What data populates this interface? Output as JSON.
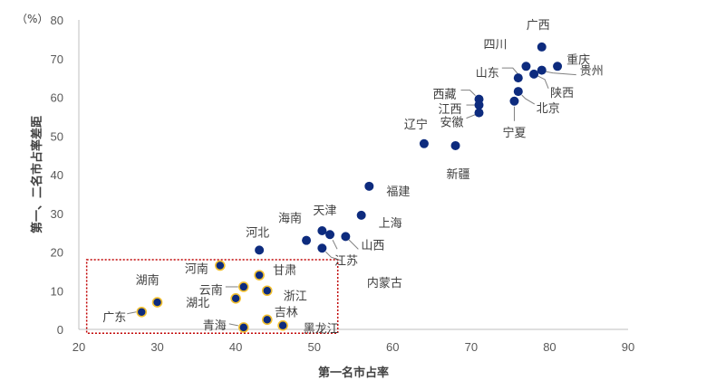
{
  "chart_data": {
    "type": "scatter",
    "unit_label": "（%）",
    "xlabel": "第一名市占率",
    "ylabel": "第一、二名市占率差距",
    "xlim": [
      20,
      90
    ],
    "ylim": [
      0,
      80
    ],
    "xticks": [
      "20",
      "30",
      "40",
      "50",
      "60",
      "70",
      "80",
      "90"
    ],
    "yticks": [
      "0",
      "10",
      "20",
      "30",
      "40",
      "50",
      "60",
      "70",
      "80"
    ],
    "grid": false,
    "points": [
      {
        "name": "广西",
        "x": 79,
        "y": 73,
        "highlight": false
      },
      {
        "name": "重庆",
        "x": 81,
        "y": 68,
        "highlight": false
      },
      {
        "name": "四川",
        "x": 77,
        "y": 68,
        "highlight": false
      },
      {
        "name": "山东",
        "x": 76,
        "y": 65,
        "highlight": false
      },
      {
        "name": "贵州",
        "x": 79,
        "y": 67,
        "highlight": false
      },
      {
        "name": "陕西",
        "x": 78,
        "y": 66,
        "highlight": false
      },
      {
        "name": "北京",
        "x": 76,
        "y": 61.5,
        "highlight": false
      },
      {
        "name": "宁夏",
        "x": 75.5,
        "y": 59,
        "highlight": false
      },
      {
        "name": "西藏",
        "x": 71,
        "y": 59.5,
        "highlight": false
      },
      {
        "name": "江西",
        "x": 71,
        "y": 58,
        "highlight": false
      },
      {
        "name": "安徽",
        "x": 71,
        "y": 56,
        "highlight": false
      },
      {
        "name": "辽宁",
        "x": 64,
        "y": 48,
        "highlight": false
      },
      {
        "name": "新疆",
        "x": 68,
        "y": 47.5,
        "highlight": false
      },
      {
        "name": "福建",
        "x": 57,
        "y": 37,
        "highlight": false
      },
      {
        "name": "上海",
        "x": 56,
        "y": 29.5,
        "highlight": false
      },
      {
        "name": "天津",
        "x": 51,
        "y": 25.5,
        "highlight": false
      },
      {
        "name": "海南",
        "x": 49,
        "y": 23,
        "highlight": false
      },
      {
        "name": "山西",
        "x": 54,
        "y": 24,
        "highlight": false
      },
      {
        "name": "江苏",
        "x": 52,
        "y": 24.5,
        "highlight": false
      },
      {
        "name": "内蒙古",
        "x": 51,
        "y": 21,
        "highlight": false
      },
      {
        "name": "河北",
        "x": 43,
        "y": 20.5,
        "highlight": false
      },
      {
        "name": "河南",
        "x": 38,
        "y": 16.5,
        "highlight": true
      },
      {
        "name": "甘肃",
        "x": 43,
        "y": 14,
        "highlight": true
      },
      {
        "name": "云南",
        "x": 41,
        "y": 11,
        "highlight": true
      },
      {
        "name": "浙江",
        "x": 44,
        "y": 10,
        "highlight": true
      },
      {
        "name": "湖北",
        "x": 40,
        "y": 8,
        "highlight": true
      },
      {
        "name": "湖南",
        "x": 30,
        "y": 7,
        "highlight": true
      },
      {
        "name": "广东",
        "x": 28,
        "y": 4.5,
        "highlight": true
      },
      {
        "name": "吉林",
        "x": 44,
        "y": 2.5,
        "highlight": true
      },
      {
        "name": "黑龙江",
        "x": 46,
        "y": 1,
        "highlight": true
      },
      {
        "name": "青海",
        "x": 41,
        "y": 0.5,
        "highlight": true
      }
    ],
    "highlight_box": {
      "x": [
        21,
        53
      ],
      "y": [
        -1,
        18
      ]
    },
    "colors": {
      "point": "#0D2B7E",
      "highlight_outline": "#F2C030",
      "box": "#C00000",
      "axis": "#BFBFBF"
    }
  }
}
